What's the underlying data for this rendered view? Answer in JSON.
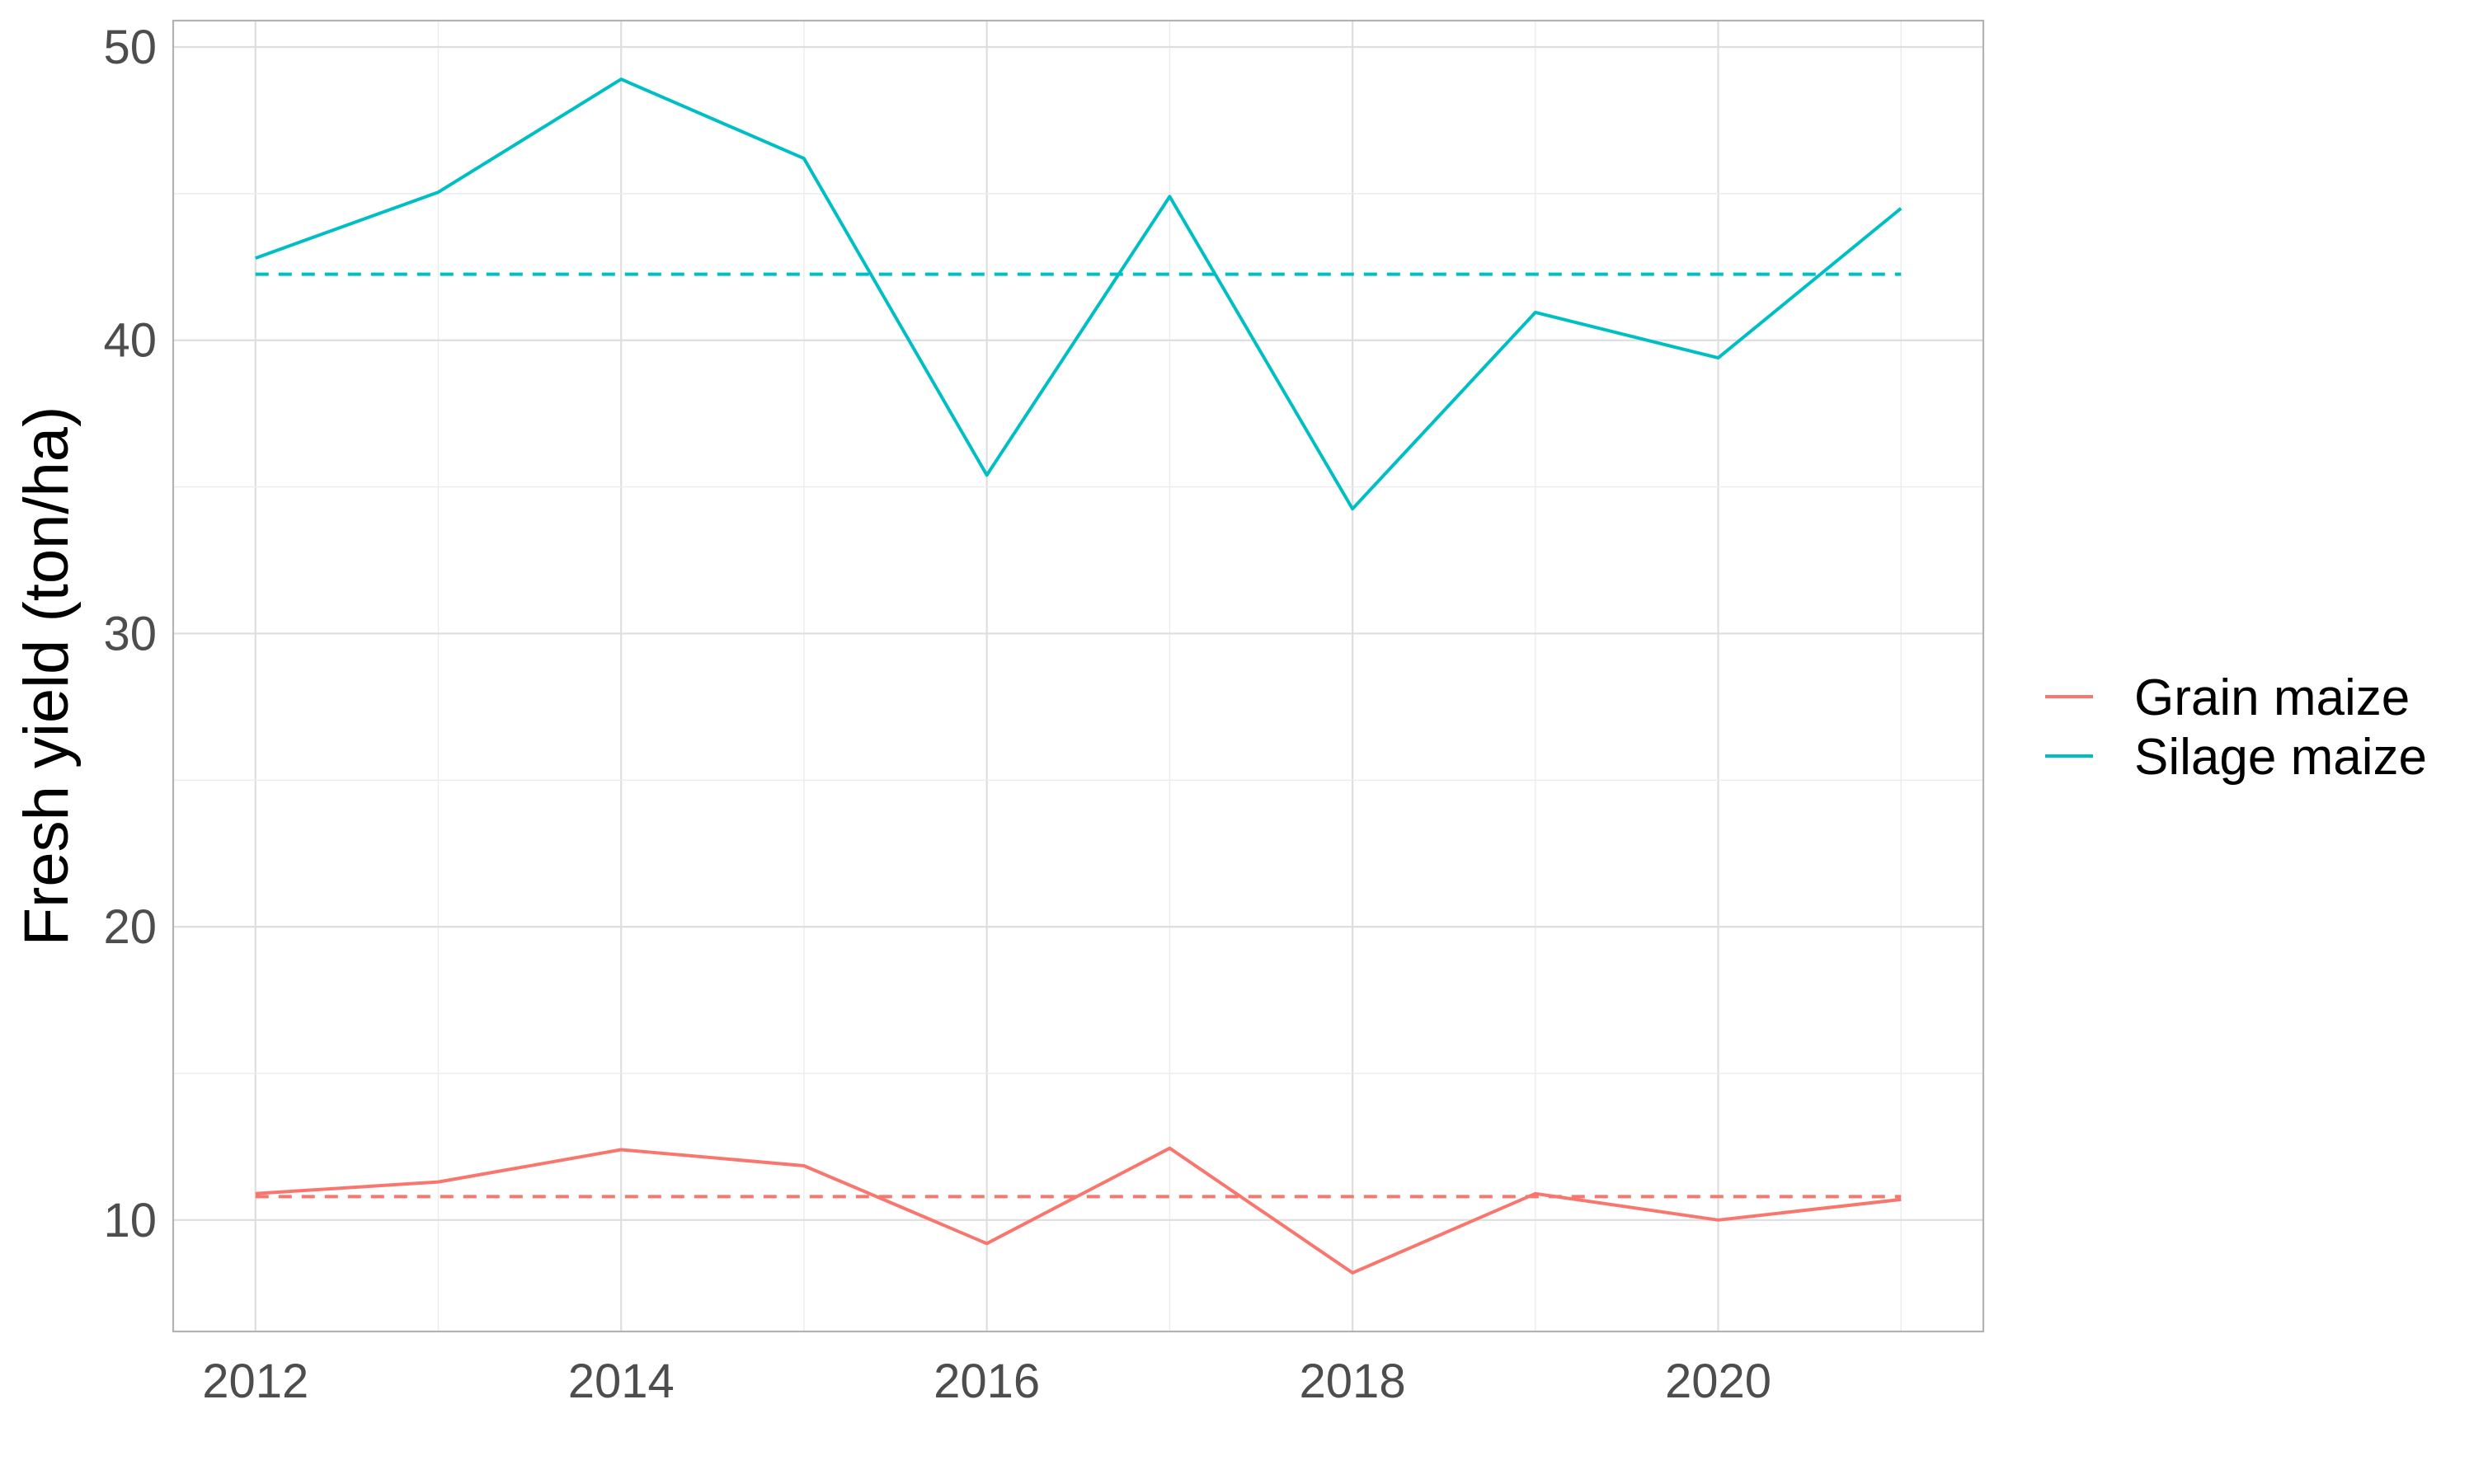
{
  "chart_data": {
    "type": "line",
    "title": "",
    "xlabel": "",
    "ylabel": "Fresh yield (ton/ha)",
    "x": [
      2012,
      2013,
      2014,
      2015,
      2016,
      2017,
      2018,
      2019,
      2020,
      2021
    ],
    "xlim": [
      2011.55,
      2021.45
    ],
    "ylim": [
      6.2,
      50.9
    ],
    "x_ticks": [
      2012,
      2014,
      2016,
      2018,
      2020
    ],
    "y_ticks": [
      10,
      20,
      30,
      40,
      50
    ],
    "grid": true,
    "legend_position": "right",
    "series": [
      {
        "name": "Grain maize",
        "color": "#F8766D",
        "values": [
          10.9,
          11.3,
          12.4,
          11.85,
          9.2,
          12.45,
          8.2,
          10.9,
          10.0,
          10.7
        ],
        "mean": 10.8
      },
      {
        "name": "Silage maize",
        "color": "#00BFC4",
        "values": [
          42.8,
          45.05,
          48.9,
          46.2,
          35.4,
          44.9,
          34.25,
          40.95,
          39.4,
          44.5
        ],
        "mean": 42.25
      }
    ]
  }
}
